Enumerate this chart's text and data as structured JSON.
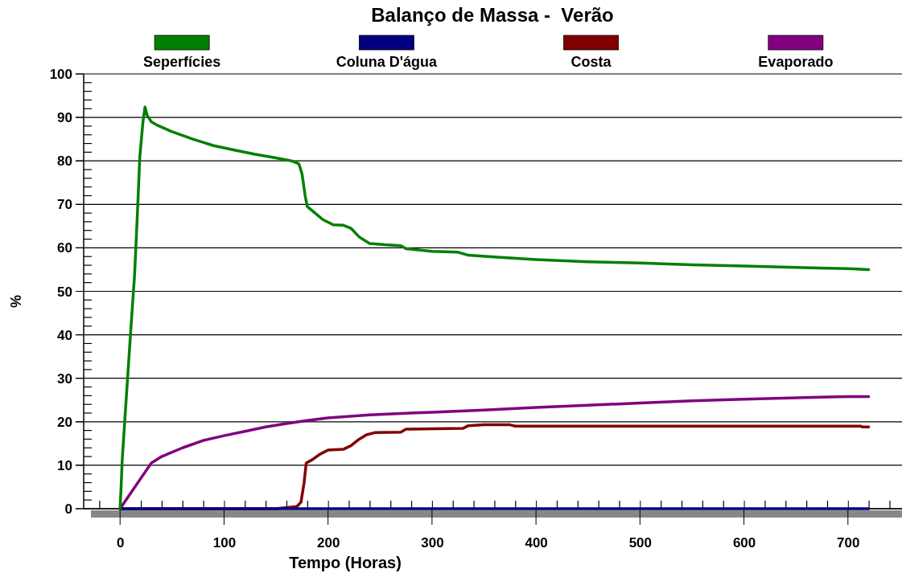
{
  "chart_data": {
    "type": "line",
    "title": "Balanço de Massa -  Verão",
    "xlabel": "Tempo (Horas)",
    "ylabel": "%",
    "xlim": [
      -35,
      752
    ],
    "ylim": [
      0,
      100
    ],
    "xticks": [
      {
        "value": -20,
        "label": null
      },
      0,
      {
        "value": 20,
        "label": null
      },
      {
        "value": 40,
        "label": null
      },
      {
        "value": 60,
        "label": null
      },
      {
        "value": 80,
        "label": null
      },
      100,
      {
        "value": 120,
        "label": null
      },
      {
        "value": 140,
        "label": null
      },
      {
        "value": 160,
        "label": null
      },
      {
        "value": 180,
        "label": null
      },
      200,
      {
        "value": 220,
        "label": null
      },
      {
        "value": 240,
        "label": null
      },
      {
        "value": 260,
        "label": null
      },
      {
        "value": 280,
        "label": null
      },
      300,
      {
        "value": 320,
        "label": null
      },
      {
        "value": 340,
        "label": null
      },
      {
        "value": 360,
        "label": null
      },
      {
        "value": 380,
        "label": null
      },
      400,
      {
        "value": 420,
        "label": null
      },
      {
        "value": 440,
        "label": null
      },
      {
        "value": 460,
        "label": null
      },
      {
        "value": 480,
        "label": null
      },
      500,
      {
        "value": 520,
        "label": null
      },
      {
        "value": 540,
        "label": null
      },
      {
        "value": 560,
        "label": null
      },
      {
        "value": 580,
        "label": null
      },
      600,
      {
        "value": 620,
        "label": null
      },
      {
        "value": 640,
        "label": null
      },
      {
        "value": 660,
        "label": null
      },
      {
        "value": 680,
        "label": null
      },
      700,
      {
        "value": 720,
        "label": null
      },
      {
        "value": 740,
        "label": null
      }
    ],
    "yticks": [
      0,
      {
        "value": 2,
        "label": null
      },
      {
        "value": 4,
        "label": null
      },
      {
        "value": 6,
        "label": null
      },
      {
        "value": 8,
        "label": null
      },
      10,
      {
        "value": 12,
        "label": null
      },
      {
        "value": 14,
        "label": null
      },
      {
        "value": 16,
        "label": null
      },
      {
        "value": 18,
        "label": null
      },
      20,
      {
        "value": 22,
        "label": null
      },
      {
        "value": 24,
        "label": null
      },
      {
        "value": 26,
        "label": null
      },
      {
        "value": 28,
        "label": null
      },
      30,
      {
        "value": 32,
        "label": null
      },
      {
        "value": 34,
        "label": null
      },
      {
        "value": 36,
        "label": null
      },
      {
        "value": 38,
        "label": null
      },
      40,
      {
        "value": 42,
        "label": null
      },
      {
        "value": 44,
        "label": null
      },
      {
        "value": 46,
        "label": null
      },
      {
        "value": 48,
        "label": null
      },
      50,
      {
        "value": 52,
        "label": null
      },
      {
        "value": 54,
        "label": null
      },
      {
        "value": 56,
        "label": null
      },
      {
        "value": 58,
        "label": null
      },
      60,
      {
        "value": 62,
        "label": null
      },
      {
        "value": 64,
        "label": null
      },
      {
        "value": 66,
        "label": null
      },
      {
        "value": 68,
        "label": null
      },
      70,
      {
        "value": 72,
        "label": null
      },
      {
        "value": 74,
        "label": null
      },
      {
        "value": 76,
        "label": null
      },
      {
        "value": 78,
        "label": null
      },
      80,
      {
        "value": 82,
        "label": null
      },
      {
        "value": 84,
        "label": null
      },
      {
        "value": 86,
        "label": null
      },
      {
        "value": 88,
        "label": null
      },
      90,
      {
        "value": 92,
        "label": null
      },
      {
        "value": 94,
        "label": null
      },
      {
        "value": 96,
        "label": null
      },
      {
        "value": 98,
        "label": null
      },
      100
    ],
    "grid": "y",
    "legend": "top",
    "marker": "none",
    "line_style": "solid",
    "series": [
      {
        "name": "Seperfícies",
        "color": "#008000",
        "x": [
          0,
          1,
          2,
          5,
          7.5,
          10,
          12,
          14,
          16.5,
          19,
          22,
          24,
          26,
          30,
          35,
          50,
          70,
          90,
          110,
          130,
          150,
          165,
          172,
          175,
          178,
          180,
          185,
          195,
          205,
          215,
          222,
          230,
          240,
          255,
          270,
          275,
          300,
          325,
          335,
          360,
          400,
          450,
          500,
          550,
          600,
          650,
          700,
          720
        ],
        "values": [
          0,
          5,
          11,
          22,
          31,
          40,
          47,
          54,
          67,
          81,
          89,
          92.4,
          90.5,
          89,
          88.3,
          86.7,
          85,
          83.5,
          82.5,
          81.5,
          80.7,
          80,
          79.3,
          77,
          72,
          69.5,
          68.5,
          66.5,
          65.3,
          65.2,
          64.5,
          62.5,
          61,
          60.7,
          60.5,
          59.8,
          59.2,
          59,
          58.3,
          57.9,
          57.3,
          56.8,
          56.5,
          56.1,
          55.8,
          55.5,
          55.2,
          55
        ]
      },
      {
        "name": "Coluna D'água",
        "color": "#000080",
        "x": [
          0,
          720
        ],
        "values": [
          0,
          0
        ]
      },
      {
        "name": "Costa",
        "color": "#800000",
        "x": [
          0,
          150,
          170,
          174,
          177,
          179,
          185,
          192,
          200,
          215,
          222,
          230,
          237,
          245,
          270,
          275,
          330,
          335,
          350,
          375,
          380,
          700,
          712,
          714,
          720
        ],
        "values": [
          0,
          0,
          0.5,
          1.5,
          6,
          10.5,
          11.3,
          12.5,
          13.5,
          13.7,
          14.5,
          16,
          17,
          17.5,
          17.6,
          18.3,
          18.5,
          19.1,
          19.3,
          19.3,
          19,
          19,
          19,
          18.8,
          18.8
        ]
      },
      {
        "name": "Evaporado",
        "color": "#800080",
        "x": [
          0,
          10,
          20,
          30,
          40,
          60,
          80,
          100,
          120,
          140,
          160,
          180,
          200,
          240,
          300,
          350,
          400,
          450,
          500,
          550,
          600,
          650,
          700,
          720
        ],
        "values": [
          0,
          3.5,
          7,
          10.5,
          12,
          14,
          15.7,
          16.8,
          17.8,
          18.8,
          19.6,
          20.3,
          20.9,
          21.6,
          22.2,
          22.7,
          23.3,
          23.8,
          24.3,
          24.8,
          25.2,
          25.5,
          25.8,
          25.8
        ]
      }
    ]
  }
}
